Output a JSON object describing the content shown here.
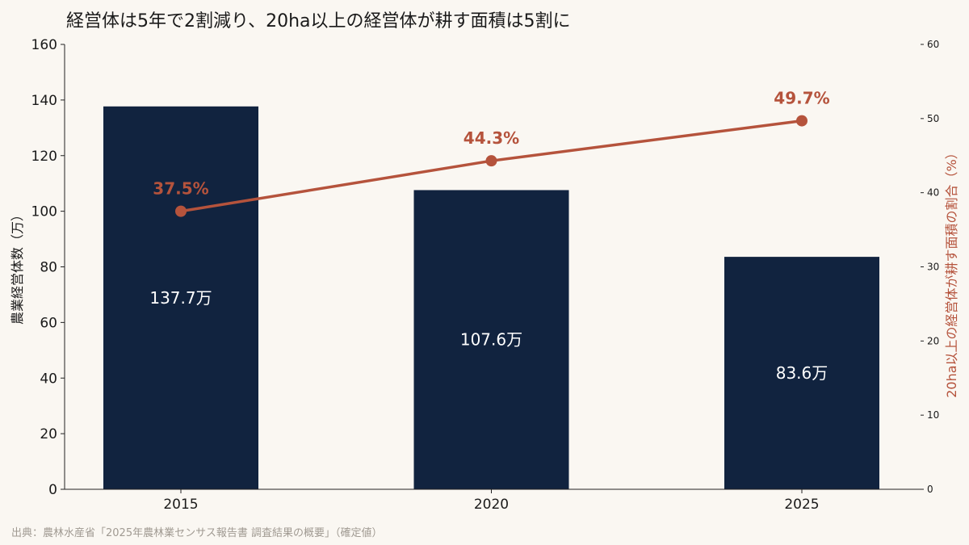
{
  "title": "経営体は5年で2割減り、20ha以上の経営体が耕す面積は5割に",
  "source": "出典：農林水産省「2025年農林業センサス報告書 調査結果の概要」（確定値）",
  "colors": {
    "bar": "#11233f",
    "line": "#b5533c",
    "background": "#faf7f2",
    "source": "#a09a92"
  },
  "chart_data": {
    "type": "bar",
    "categories": [
      "2015",
      "2020",
      "2025"
    ],
    "series": [
      {
        "axis": "left",
        "type": "bar",
        "values": [
          137.7,
          107.6,
          83.6
        ],
        "labels": [
          "137.7万",
          "107.6万",
          "83.6万"
        ]
      },
      {
        "axis": "right",
        "type": "line",
        "values": [
          37.5,
          44.3,
          49.7
        ],
        "labels": [
          "37.5%",
          "44.3%",
          "49.7%"
        ]
      }
    ],
    "ylabel": "農業経営体数（万）",
    "ylim": [
      0,
      160
    ],
    "yticks": [
      0,
      20,
      40,
      60,
      80,
      100,
      120,
      140,
      160
    ],
    "ylabel_right": "20ha以上の経営体が耕す面積の割合（%）",
    "ylim_right": [
      0,
      60
    ],
    "yticks_right": [
      0,
      10,
      20,
      30,
      40,
      50,
      60
    ],
    "grid": false,
    "legend": "none"
  }
}
